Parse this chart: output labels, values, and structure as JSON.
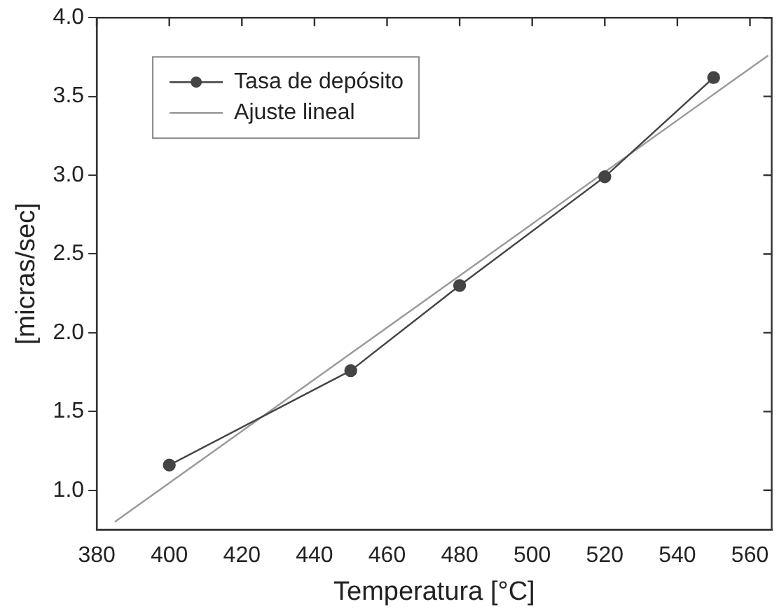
{
  "chart_data": {
    "type": "line",
    "xlabel": "Temperatura [°C]",
    "ylabel": "[micras/sec]",
    "xlim": [
      380,
      566
    ],
    "xticks": [
      380,
      400,
      420,
      440,
      460,
      480,
      500,
      520,
      540,
      560
    ],
    "ylim": [
      0.75,
      4.0
    ],
    "yticks": [
      {
        "value": 1.0,
        "label": "1.0"
      },
      {
        "value": 1.5,
        "label": "1.5"
      },
      {
        "value": 2.0,
        "label": "2.0"
      },
      {
        "value": 2.5,
        "label": "2.5"
      },
      {
        "value": 3.0,
        "label": "3.0"
      },
      {
        "value": 3.5,
        "label": "3.5"
      },
      {
        "value": 4.0,
        "label": "4.0"
      }
    ],
    "x": [
      400,
      450,
      480,
      520,
      550
    ],
    "series": [
      {
        "name": "Tasa de depósito",
        "color": "#444444",
        "values": [
          1.16,
          1.76,
          2.3,
          2.99,
          3.62
        ],
        "marker": "circle"
      },
      {
        "name": "Ajuste lineal",
        "color": "#999999",
        "x": [
          385,
          565
        ],
        "values": [
          0.8,
          3.76
        ],
        "marker": "none"
      }
    ],
    "grid": false,
    "legend": "top left",
    "line_style": "solid"
  }
}
